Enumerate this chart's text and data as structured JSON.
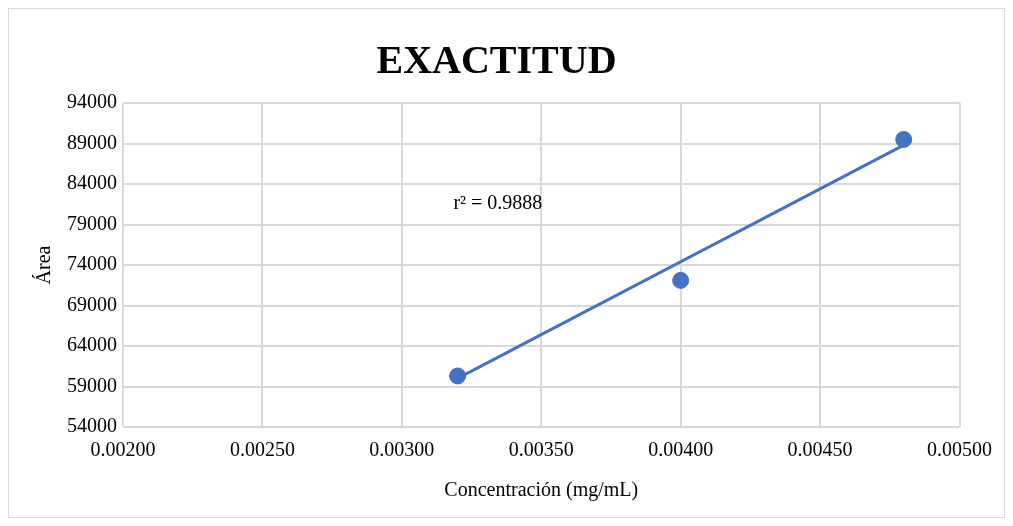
{
  "chart_data": {
    "type": "scatter",
    "title": "EXACTITUD",
    "xlabel": "Concentración (mg/mL)",
    "ylabel": "Área",
    "x": [
      0.0032,
      0.004,
      0.0048
    ],
    "series": [
      {
        "color": "#4472c4",
        "values": [
          60300,
          72100,
          89500
        ]
      },
      {
        "type": "line",
        "color": "#4472c4",
        "marker": "none",
        "x": [
          0.0032,
          0.0048
        ],
        "values": [
          60000,
          88800
        ]
      }
    ],
    "xlim": [
      0.002,
      0.005
    ],
    "xticks": [
      {
        "value": 0.002,
        "label": "0.00200"
      },
      {
        "value": 0.0025,
        "label": "0.00250"
      },
      {
        "value": 0.003,
        "label": "0.00300"
      },
      {
        "value": 0.0035,
        "label": "0.00350"
      },
      {
        "value": 0.004,
        "label": "0.00400"
      },
      {
        "value": 0.0045,
        "label": "0.00450"
      },
      {
        "value": 0.005,
        "label": "0.00500"
      }
    ],
    "ylim": [
      54000,
      94000
    ],
    "yticks": [
      54000,
      59000,
      64000,
      69000,
      74000,
      79000,
      84000,
      89000,
      94000
    ],
    "annotations": [
      "r² = 0.9888"
    ],
    "grid": true,
    "legend": false,
    "marker": "circle"
  }
}
